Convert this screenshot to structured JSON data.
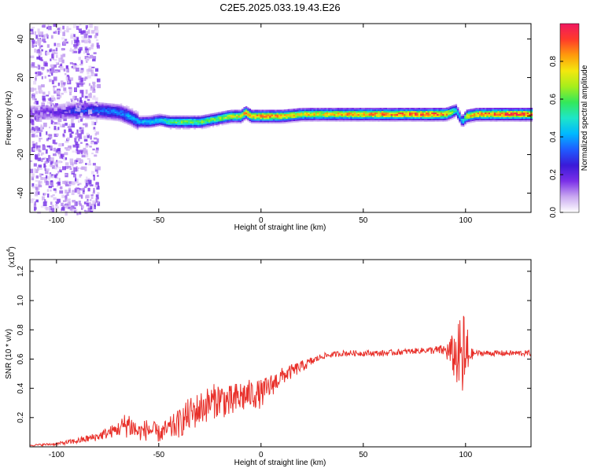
{
  "title": "C2E5.2025.033.19.43.E26",
  "colors": {
    "snr_line": "#e8302a",
    "axis": "#000000",
    "background": "#ffffff"
  },
  "chart_data": [
    {
      "type": "heatmap",
      "xlabel": "Height of straight line (km)",
      "ylabel": "Frequency (Hz)",
      "xlim": [
        -113,
        132
      ],
      "ylim": [
        -50,
        48
      ],
      "x_ticks": [
        -100,
        -50,
        0,
        50,
        100
      ],
      "y_ticks": [
        -40,
        -20,
        0,
        20,
        40
      ],
      "colorbar": {
        "label": "Normalized spectral amplitude",
        "range": [
          0,
          1
        ],
        "ticks": [
          "0.0",
          "0.2",
          "0.4",
          "0.6",
          "0.8"
        ],
        "colormap": [
          "#ffffff",
          "#c9a8f0",
          "#7a2fe8",
          "#3a1ad8",
          "#1f5cff",
          "#00b8ff",
          "#1ee6c8",
          "#33e85a",
          "#a6ee1c",
          "#f4e80e",
          "#ff9a0c",
          "#ff3a2a",
          "#f01860"
        ]
      },
      "ridge": {
        "x": [
          -112,
          -100,
          -90,
          -80,
          -70,
          -65,
          -60,
          -55,
          -50,
          -45,
          -40,
          -35,
          -30,
          -25,
          -20,
          -15,
          -10,
          -8,
          -5,
          0,
          10,
          20,
          30,
          40,
          50,
          60,
          70,
          80,
          90,
          95,
          98,
          100,
          105,
          110,
          120,
          132
        ],
        "freq": [
          2,
          2,
          3,
          3,
          2,
          0,
          -3,
          -3,
          -2,
          -3,
          -3,
          -3,
          -3,
          -2,
          -1,
          0,
          0,
          2,
          0,
          0,
          0,
          1,
          1,
          1,
          1,
          1,
          1,
          1,
          1,
          3,
          -3,
          0,
          1,
          1,
          1,
          1
        ],
        "amplitude": [
          0.15,
          0.2,
          0.3,
          0.35,
          0.35,
          0.4,
          0.4,
          0.45,
          0.45,
          0.55,
          0.6,
          0.6,
          0.6,
          0.6,
          0.65,
          0.7,
          0.75,
          0.8,
          0.8,
          0.85,
          0.8,
          0.75,
          0.75,
          0.8,
          0.8,
          0.85,
          0.85,
          0.9,
          0.85,
          0.5,
          0.4,
          0.75,
          0.8,
          0.85,
          0.9,
          0.9
        ]
      },
      "noisy_region_x": [
        -113,
        -80
      ]
    },
    {
      "type": "line",
      "xlabel": "Height of straight line (km)",
      "ylabel": "SNR (10 * v/v)",
      "y_multiplier": "(x10",
      "y_multiplier_exp": "4",
      "xlim": [
        -113,
        132
      ],
      "ylim": [
        0.0,
        1.28
      ],
      "x_ticks": [
        -100,
        -50,
        0,
        50,
        100
      ],
      "y_ticks": [
        "0.2",
        "0.4",
        "0.6",
        "0.8",
        "1.0",
        "1.2"
      ],
      "series": [
        {
          "x": [
            -113,
            -100,
            -90,
            -80,
            -70,
            -65,
            -60,
            -55,
            -50,
            -45,
            -40,
            -35,
            -30,
            -25,
            -20,
            -15,
            -10,
            -5,
            0,
            5,
            10,
            20,
            30,
            40,
            50,
            60,
            70,
            80,
            90,
            95,
            98,
            100,
            102,
            105,
            110,
            120,
            132
          ],
          "y": [
            0.01,
            0.02,
            0.04,
            0.07,
            0.12,
            0.16,
            0.1,
            0.12,
            0.09,
            0.12,
            0.16,
            0.22,
            0.26,
            0.3,
            0.33,
            0.3,
            0.34,
            0.36,
            0.36,
            0.42,
            0.48,
            0.55,
            0.62,
            0.64,
            0.64,
            0.64,
            0.65,
            0.66,
            0.66,
            0.62,
            0.6,
            0.58,
            0.63,
            0.64,
            0.64,
            0.64,
            0.64
          ],
          "noise": [
            0.005,
            0.01,
            0.02,
            0.03,
            0.05,
            0.1,
            0.06,
            0.08,
            0.06,
            0.08,
            0.1,
            0.12,
            0.12,
            0.12,
            0.12,
            0.12,
            0.12,
            0.1,
            0.1,
            0.08,
            0.06,
            0.04,
            0.02,
            0.02,
            0.02,
            0.02,
            0.02,
            0.02,
            0.04,
            0.18,
            0.3,
            0.4,
            0.05,
            0.02,
            0.02,
            0.02,
            0.02
          ]
        }
      ]
    }
  ]
}
